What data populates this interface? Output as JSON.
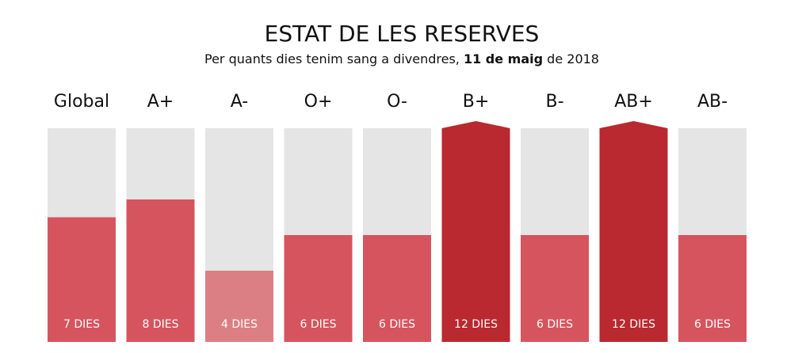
{
  "chart_data": {
    "type": "bar",
    "title": "ESTAT DE LES RESERVES",
    "subtitle": [
      "Per quants dies tenim sang a divendres, ",
      "11 de maig",
      " de 2018"
    ],
    "categories": [
      "Global",
      "A+",
      "A-",
      "O+",
      "O-",
      "B+",
      "B-",
      "AB+",
      "AB-"
    ],
    "values": [
      7,
      8,
      4,
      6,
      6,
      12,
      6,
      12,
      6
    ],
    "value_labels": [
      "7 DIES",
      "8 DIES",
      "4 DIES",
      "6 DIES",
      "6 DIES",
      "12 DIES",
      "6 DIES",
      "12 DIES",
      "6 DIES"
    ],
    "colors": [
      "#d6545e",
      "#d6545e",
      "#dc7f84",
      "#d6545e",
      "#d6545e",
      "#b9292f",
      "#d6545e",
      "#b9292f",
      "#d6545e"
    ],
    "background_color": "#e5e5e5",
    "ylim": [
      0,
      12
    ]
  }
}
